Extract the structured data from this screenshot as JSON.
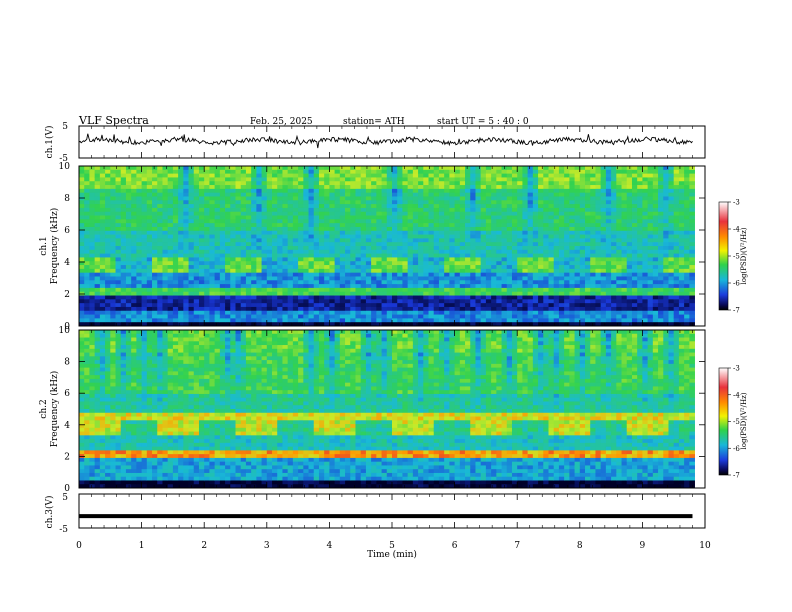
{
  "header": {
    "title": "VLF  Spectra",
    "date": "Feb. 25, 2025",
    "station": "station= ATH",
    "start": "start  UT  =   5  : 40 : 0"
  },
  "chart_data": [
    {
      "type": "line",
      "name": "ch1-waveform",
      "ylabel": "ch.1(V)",
      "ylim": [
        -5,
        5
      ],
      "yticks": [
        "5",
        "-5"
      ],
      "xlim": [
        0,
        10
      ],
      "baseline": 0.3
    },
    {
      "type": "heatmap",
      "name": "ch1-spectrogram",
      "ylabel_lines": [
        "ch.1",
        "Frequency  (kHz)"
      ],
      "ylim": [
        0,
        10
      ],
      "yticks": [
        "0",
        "2",
        "4",
        "6",
        "8",
        "10"
      ],
      "xlim": [
        0,
        10
      ],
      "colorbar": {
        "label": "log(PSD)(V²/Hz)",
        "range": [
          -7,
          -3
        ],
        "ticks": [
          "-3",
          "-4",
          "-5",
          "-6",
          "-7"
        ]
      }
    },
    {
      "type": "heatmap",
      "name": "ch2-spectrogram",
      "ylabel_lines": [
        "ch.2",
        "Frequency  (kHz)"
      ],
      "ylim": [
        0,
        10
      ],
      "yticks": [
        "0",
        "2",
        "4",
        "6",
        "8",
        "10"
      ],
      "xlim": [
        0,
        10
      ],
      "colorbar": {
        "label": "log(PSD)(V²/Hz)",
        "range": [
          -7,
          -3
        ],
        "ticks": [
          "-3",
          "-4",
          "-5",
          "-6",
          "-7"
        ]
      }
    },
    {
      "type": "line",
      "name": "ch3-waveform",
      "ylabel": "ch.3(V)",
      "ylim": [
        -5,
        5
      ],
      "yticks": [
        "5",
        "-5"
      ],
      "xlim": [
        0,
        10
      ],
      "baseline": -1.5
    }
  ],
  "xaxis": {
    "label": "Time  (min)",
    "ticks": [
      "0",
      "1",
      "2",
      "3",
      "4",
      "5",
      "6",
      "7",
      "8",
      "9",
      "10"
    ]
  }
}
